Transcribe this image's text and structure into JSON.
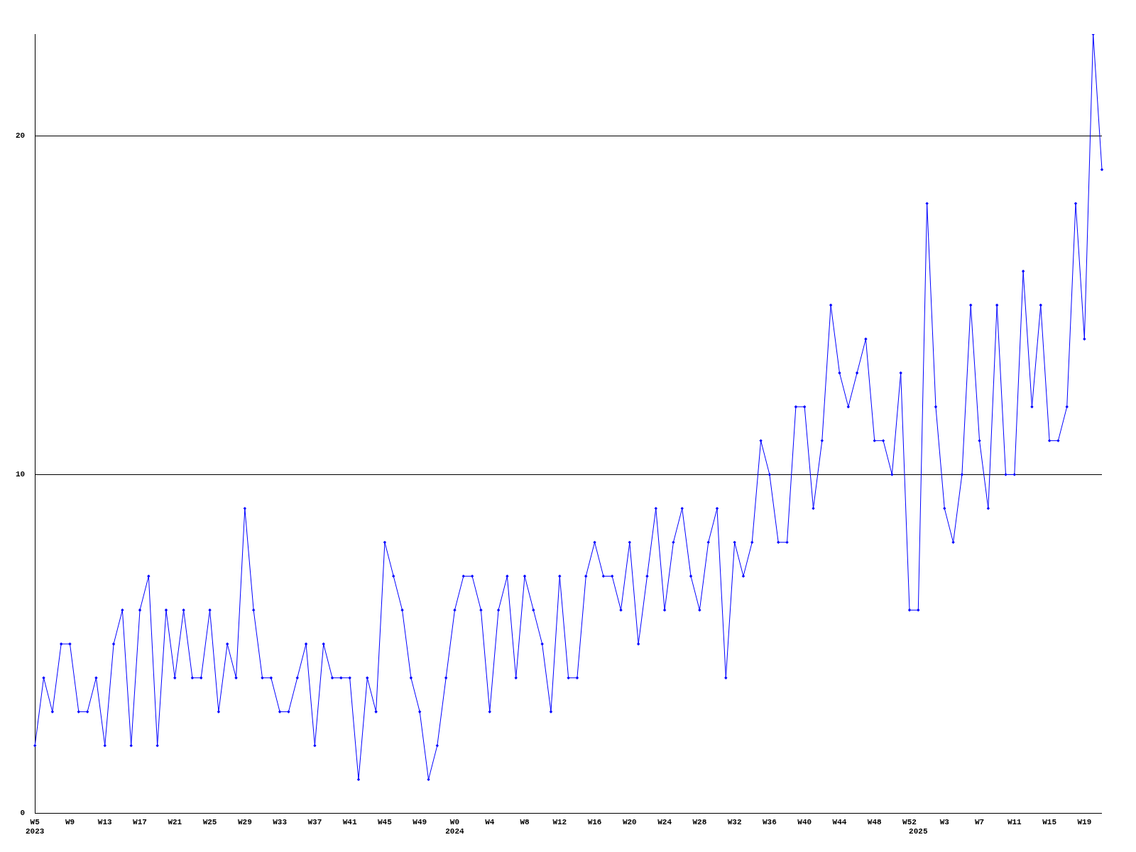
{
  "chart_data": {
    "type": "line",
    "categories": [
      "W5\n2023",
      null,
      null,
      null,
      "W9",
      null,
      null,
      null,
      "W13",
      null,
      null,
      null,
      "W17",
      null,
      null,
      null,
      "W21",
      null,
      null,
      null,
      "W25",
      null,
      null,
      null,
      "W29",
      null,
      null,
      null,
      "W33",
      null,
      null,
      null,
      "W37",
      null,
      null,
      null,
      "W41",
      null,
      null,
      null,
      "W45",
      null,
      null,
      null,
      "W49",
      null,
      null,
      null,
      "W0\n2024",
      null,
      null,
      null,
      "W4",
      null,
      null,
      null,
      "W8",
      null,
      null,
      null,
      "W12",
      null,
      null,
      null,
      "W16",
      null,
      null,
      null,
      "W20",
      null,
      null,
      null,
      "W24",
      null,
      null,
      null,
      "W28",
      null,
      null,
      null,
      "W32",
      null,
      null,
      null,
      "W36",
      null,
      null,
      null,
      "W40",
      null,
      null,
      null,
      "W44",
      null,
      null,
      null,
      "W48",
      null,
      null,
      null,
      "W52",
      "\n2025",
      null,
      null,
      "W3",
      null,
      null,
      null,
      "W7",
      null,
      null,
      null,
      "W11",
      null,
      null,
      null,
      "W15",
      null,
      null,
      null,
      "W19",
      null,
      null
    ],
    "series": [
      {
        "color": "#0000ff",
        "values": [
          2,
          4,
          3,
          5,
          5,
          3,
          3,
          4,
          2,
          5,
          6,
          2,
          6,
          7,
          2,
          6,
          4,
          6,
          4,
          4,
          6,
          3,
          5,
          4,
          9,
          6,
          4,
          4,
          3,
          3,
          4,
          5,
          2,
          5,
          4,
          4,
          4,
          1,
          4,
          3,
          8,
          7,
          6,
          4,
          3,
          1,
          2,
          4,
          6,
          7,
          7,
          6,
          3,
          6,
          7,
          4,
          7,
          6,
          5,
          3,
          7,
          4,
          4,
          7,
          8,
          7,
          7,
          6,
          8,
          5,
          7,
          9,
          6,
          8,
          9,
          7,
          6,
          8,
          9,
          4,
          8,
          7,
          8,
          11,
          10,
          8,
          8,
          12,
          12,
          9,
          11,
          15,
          13,
          12,
          13,
          14,
          11,
          11,
          10,
          13,
          6,
          6,
          18,
          12,
          9,
          8,
          10,
          15,
          11,
          9,
          15,
          10,
          10,
          16,
          12,
          15,
          11,
          11,
          12,
          18,
          14,
          23,
          19
        ]
      }
    ],
    "ylim": [
      0,
      23
    ],
    "yticks": [
      0,
      10,
      20
    ],
    "grid": "y",
    "legend": false,
    "marker": "diamond",
    "line_style": "solid"
  }
}
